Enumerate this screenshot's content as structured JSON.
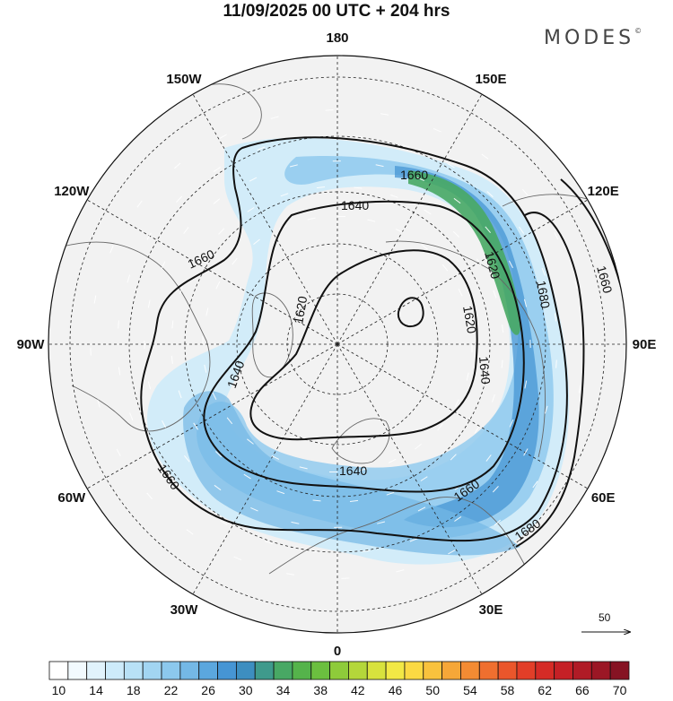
{
  "title": "11/09/2025  00 UTC  + 204 hrs",
  "brand": {
    "name": "MODES",
    "mark": "©"
  },
  "map": {
    "projection": "north-polar-stereographic",
    "longitude_labels": [
      {
        "text": "180",
        "lon": 180
      },
      {
        "text": "150E",
        "lon": 150
      },
      {
        "text": "120E",
        "lon": 120
      },
      {
        "text": "90E",
        "lon": 90
      },
      {
        "text": "60E",
        "lon": 60
      },
      {
        "text": "30E",
        "lon": 30
      },
      {
        "text": "0",
        "lon": 0
      },
      {
        "text": "30W",
        "lon": -30
      },
      {
        "text": "60W",
        "lon": -60
      },
      {
        "text": "90W",
        "lon": -90
      },
      {
        "text": "120W",
        "lon": -120
      },
      {
        "text": "150W",
        "lon": -150
      }
    ],
    "contour_labels": [
      "1660",
      "1640",
      "1620",
      "1620",
      "1640",
      "1660",
      "1660",
      "1680",
      "1660",
      "1620",
      "1640",
      "1680",
      "1660",
      "1640"
    ],
    "contour_levels": [
      1620,
      1640,
      1660,
      1680
    ],
    "wind_reference": {
      "value": "50"
    }
  },
  "colorbar": {
    "bins": [
      10,
      12,
      14,
      16,
      18,
      20,
      22,
      24,
      26,
      28,
      30,
      32,
      34,
      36,
      38,
      40,
      42,
      44,
      46,
      48,
      50,
      52,
      54,
      56,
      58,
      60,
      62,
      64,
      66,
      68,
      70,
      72
    ],
    "tick_labels": [
      "10",
      "14",
      "18",
      "22",
      "26",
      "30",
      "34",
      "38",
      "42",
      "46",
      "50",
      "54",
      "58",
      "62",
      "66",
      "70"
    ],
    "colors": [
      "#ffffff",
      "#f2fafe",
      "#e1f3fc",
      "#cdebfa",
      "#b8e1f6",
      "#a2d5f2",
      "#8cc8ed",
      "#74b8e6",
      "#5ba7de",
      "#4695d4",
      "#3d8ec0",
      "#3f9a8c",
      "#48a864",
      "#55b34b",
      "#6bbf3f",
      "#8ecb3a",
      "#b4d73a",
      "#d8e23d",
      "#f2e845",
      "#fbd943",
      "#f9c23d",
      "#f6a738",
      "#f38b33",
      "#ef6f2f",
      "#ea562b",
      "#e23e28",
      "#d52b26",
      "#c52026",
      "#b01b26",
      "#9b1725",
      "#861323"
    ]
  }
}
